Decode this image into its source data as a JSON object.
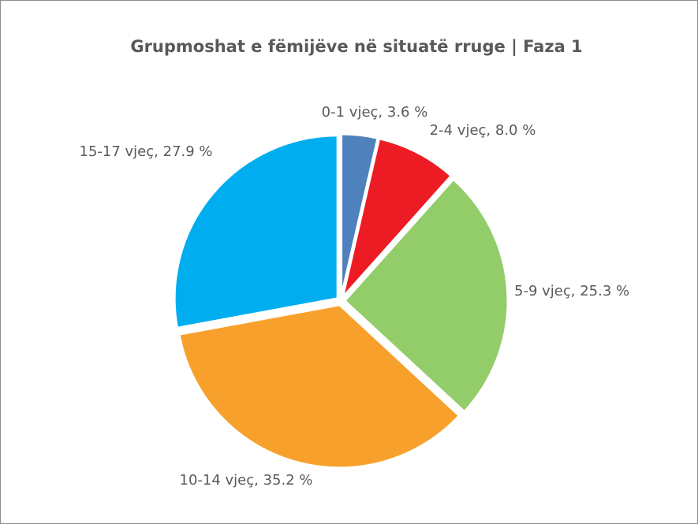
{
  "chart_data": {
    "type": "pie",
    "title": "Grupmoshat e fëmijëve në situatë rruge | Faza 1",
    "values": [
      3.6,
      8.0,
      25.3,
      35.2,
      27.9
    ],
    "value_labels": [
      "0-1 vjeç, 3.6 %",
      "2-4 vjeç, 8.0 %",
      "5-9 vjeç, 25.3 %",
      "10-14 vjeç, 35.2 %",
      "15-17 vjeç, 27.9 %"
    ],
    "colors": [
      "#4f81bd",
      "#ed1c24",
      "#92cd6a",
      "#f7a12c",
      "#00aeef"
    ]
  }
}
